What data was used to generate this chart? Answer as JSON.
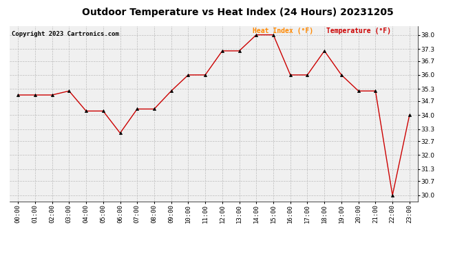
{
  "title": "Outdoor Temperature vs Heat Index (24 Hours) 20231205",
  "copyright": "Copyright 2023 Cartronics.com",
  "legend_heat_index": "Heat Index (°F)",
  "legend_temperature": "Temperature (°F)",
  "hours": [
    "00:00",
    "01:00",
    "02:00",
    "03:00",
    "04:00",
    "05:00",
    "06:00",
    "07:00",
    "08:00",
    "09:00",
    "10:00",
    "11:00",
    "12:00",
    "13:00",
    "14:00",
    "15:00",
    "16:00",
    "17:00",
    "18:00",
    "19:00",
    "20:00",
    "21:00",
    "22:00",
    "23:00"
  ],
  "values": [
    35.0,
    35.0,
    35.0,
    35.2,
    34.2,
    34.2,
    33.1,
    34.3,
    34.3,
    35.2,
    36.0,
    36.0,
    37.2,
    37.2,
    38.0,
    38.0,
    36.0,
    36.0,
    37.2,
    36.0,
    35.2,
    35.2,
    30.0,
    34.0
  ],
  "ylim_min": 29.7,
  "ylim_max": 38.45,
  "yticks": [
    30.0,
    30.7,
    31.3,
    32.0,
    32.7,
    33.3,
    34.0,
    34.7,
    35.3,
    36.0,
    36.7,
    37.3,
    38.0
  ],
  "line_color": "#cc0000",
  "marker": "^",
  "bg_color": "#ffffff",
  "grid_color": "#bbbbbb",
  "title_color": "#000000",
  "copyright_color": "#000000",
  "legend_heat_color": "#ff8800",
  "legend_temp_color": "#cc0000",
  "title_fontsize": 10,
  "copyright_fontsize": 6.5,
  "legend_fontsize": 7,
  "tick_fontsize": 6.5,
  "axis_bg_color": "#f0f0f0"
}
